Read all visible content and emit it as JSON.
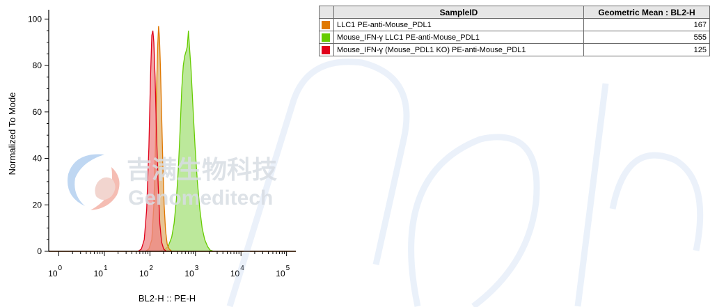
{
  "chart_data": {
    "type": "area",
    "xlabel": "BL2-H :: PE-H",
    "ylabel": "Normalized To Mode",
    "xscale": "log",
    "xlim": [
      0.6,
      160000
    ],
    "ylim": [
      0,
      104
    ],
    "y_ticks": [
      0,
      20,
      40,
      60,
      80,
      100
    ],
    "x_ticks": [
      {
        "base": "10",
        "exp": "0",
        "value": 1
      },
      {
        "base": "10",
        "exp": "1",
        "value": 10
      },
      {
        "base": "10",
        "exp": "2",
        "value": 100
      },
      {
        "base": "10",
        "exp": "3",
        "value": 1000
      },
      {
        "base": "10",
        "exp": "4",
        "value": 10000
      },
      {
        "base": "10",
        "exp": "5",
        "value": 100000
      }
    ],
    "series": [
      {
        "name": "Mouse_IFN-γ LLC1 PE-anti-Mouse_PDL1",
        "color": "#66cc00",
        "fill": "#a6e07a",
        "points": [
          [
            0.6,
            0
          ],
          [
            150,
            0
          ],
          [
            200,
            0.5
          ],
          [
            250,
            2
          ],
          [
            300,
            6
          ],
          [
            340,
            12
          ],
          [
            380,
            22
          ],
          [
            420,
            35
          ],
          [
            460,
            52
          ],
          [
            500,
            70
          ],
          [
            540,
            80
          ],
          [
            580,
            84
          ],
          [
            620,
            86
          ],
          [
            660,
            88
          ],
          [
            700,
            95
          ],
          [
            740,
            88
          ],
          [
            800,
            78
          ],
          [
            880,
            62
          ],
          [
            980,
            45
          ],
          [
            1100,
            30
          ],
          [
            1250,
            18
          ],
          [
            1400,
            10
          ],
          [
            1600,
            5
          ],
          [
            1850,
            2
          ],
          [
            2100,
            0.5
          ],
          [
            2500,
            0
          ],
          [
            160000,
            0
          ]
        ]
      },
      {
        "name": "LLC1 PE-anti-Mouse_PDL1",
        "color": "#e07800",
        "fill": "#e0b071",
        "points": [
          [
            0.6,
            0
          ],
          [
            80,
            0
          ],
          [
            95,
            1
          ],
          [
            110,
            5
          ],
          [
            122,
            20
          ],
          [
            132,
            45
          ],
          [
            140,
            70
          ],
          [
            148,
            88
          ],
          [
            155,
            97
          ],
          [
            162,
            92
          ],
          [
            170,
            80
          ],
          [
            180,
            60
          ],
          [
            192,
            38
          ],
          [
            205,
            20
          ],
          [
            220,
            9
          ],
          [
            240,
            3
          ],
          [
            265,
            1
          ],
          [
            300,
            0
          ],
          [
            160000,
            0
          ]
        ]
      },
      {
        "name": "Mouse_IFN-γ  (Mouse_PDL1 KO) PE-anti-Mouse_PDL1",
        "color": "#e0001a",
        "fill": "#ee8585",
        "points": [
          [
            0.6,
            0
          ],
          [
            55,
            0
          ],
          [
            65,
            1
          ],
          [
            75,
            5
          ],
          [
            85,
            18
          ],
          [
            95,
            45
          ],
          [
            103,
            75
          ],
          [
            110,
            93
          ],
          [
            116,
            95
          ],
          [
            122,
            90
          ],
          [
            130,
            75
          ],
          [
            140,
            50
          ],
          [
            152,
            28
          ],
          [
            165,
            12
          ],
          [
            180,
            4
          ],
          [
            200,
            1
          ],
          [
            230,
            0
          ],
          [
            160000,
            0
          ]
        ]
      }
    ]
  },
  "table": {
    "headers": [
      "SampleID",
      "Geometric Mean : BL2-H"
    ],
    "rows": [
      {
        "color": "#e07800",
        "name": "LLC1 PE-anti-Mouse_PDL1",
        "value": "167"
      },
      {
        "color": "#66cc00",
        "name": "Mouse_IFN-γ LLC1 PE-anti-Mouse_PDL1",
        "value": "555"
      },
      {
        "color": "#e0001a",
        "name": "Mouse_IFN-γ  (Mouse_PDL1 KO) PE-anti-Mouse_PDL1",
        "value": "125"
      }
    ]
  },
  "watermark": {
    "cn_text": "吉满生物科技",
    "en_text": "Genomeditech"
  }
}
